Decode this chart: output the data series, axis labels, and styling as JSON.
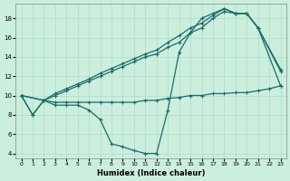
{
  "title": "",
  "xlabel": "Humidex (Indice chaleur)",
  "background_color": "#cceedd",
  "line_color": "#1a6b6b",
  "xlim": [
    -0.5,
    23.5
  ],
  "ylim": [
    3.5,
    19.5
  ],
  "xticks": [
    0,
    1,
    2,
    3,
    4,
    5,
    6,
    7,
    8,
    9,
    10,
    11,
    12,
    13,
    14,
    15,
    16,
    17,
    18,
    19,
    20,
    21,
    22,
    23
  ],
  "yticks": [
    4,
    6,
    8,
    10,
    12,
    14,
    16,
    18
  ],
  "grid_color": "#aaddcc",
  "series": [
    {
      "comment": "Line 1 - zigzag down then up path (bottom curve): 0->10, 1->8, 2->9.5, 3->9, 4->9, 5->9, 6->8.5, 7->7.5, 8->5, 9->4.7, 10->4.3, 11->4, 12->4, 13->8.5, 14->14.5, 15->16.5, 16->18, 17->18.5, 18->19, 19->18.5, 20->18.5, 21->17, 23->12.7",
      "x": [
        0,
        1,
        2,
        3,
        4,
        5,
        6,
        7,
        8,
        9,
        10,
        11,
        12,
        13,
        14,
        15,
        16,
        17,
        18,
        19,
        20,
        21,
        23
      ],
      "y": [
        10,
        8,
        9.5,
        9.0,
        9.0,
        9.0,
        8.5,
        7.5,
        5.0,
        4.7,
        4.3,
        4.0,
        4.0,
        8.5,
        14.5,
        16.5,
        18.0,
        18.5,
        19.0,
        18.5,
        18.5,
        17.0,
        12.7
      ]
    },
    {
      "comment": "Line 2 - diagonal rising from x=2: starts at 0->10, then 2->9.5 rising steadily to 20->18.5, 21->17, 23->12.5",
      "x": [
        0,
        2,
        3,
        4,
        5,
        6,
        7,
        8,
        9,
        10,
        11,
        12,
        13,
        14,
        15,
        16,
        17,
        18,
        19,
        20,
        21,
        23
      ],
      "y": [
        10,
        9.5,
        10.0,
        10.5,
        11.0,
        11.5,
        12.0,
        12.5,
        13.0,
        13.5,
        14.0,
        14.3,
        15.0,
        15.5,
        16.5,
        17.0,
        18.0,
        18.7,
        18.5,
        18.5,
        17.0,
        12.5
      ]
    },
    {
      "x": [
        0,
        2,
        3,
        4,
        5,
        6,
        7,
        8,
        9,
        10,
        11,
        12,
        13,
        14,
        15,
        16,
        17,
        18,
        19,
        20,
        21,
        23
      ],
      "y": [
        10,
        9.5,
        10.2,
        10.7,
        11.2,
        11.7,
        12.3,
        12.8,
        13.3,
        13.8,
        14.3,
        14.7,
        15.5,
        16.2,
        17.0,
        17.5,
        18.3,
        19.0,
        18.5,
        18.5,
        17.0,
        11.0
      ]
    },
    {
      "x": [
        0,
        1,
        2,
        3,
        4,
        5,
        6,
        7,
        8,
        9,
        10,
        11,
        12,
        13,
        14,
        15,
        16,
        17,
        18,
        19,
        20,
        21,
        22,
        23
      ],
      "y": [
        10,
        8,
        9.5,
        9.3,
        9.3,
        9.3,
        9.3,
        9.3,
        9.3,
        9.3,
        9.3,
        9.5,
        9.5,
        9.7,
        9.8,
        10.0,
        10.0,
        10.2,
        10.2,
        10.3,
        10.3,
        10.5,
        10.7,
        11.0
      ]
    }
  ]
}
